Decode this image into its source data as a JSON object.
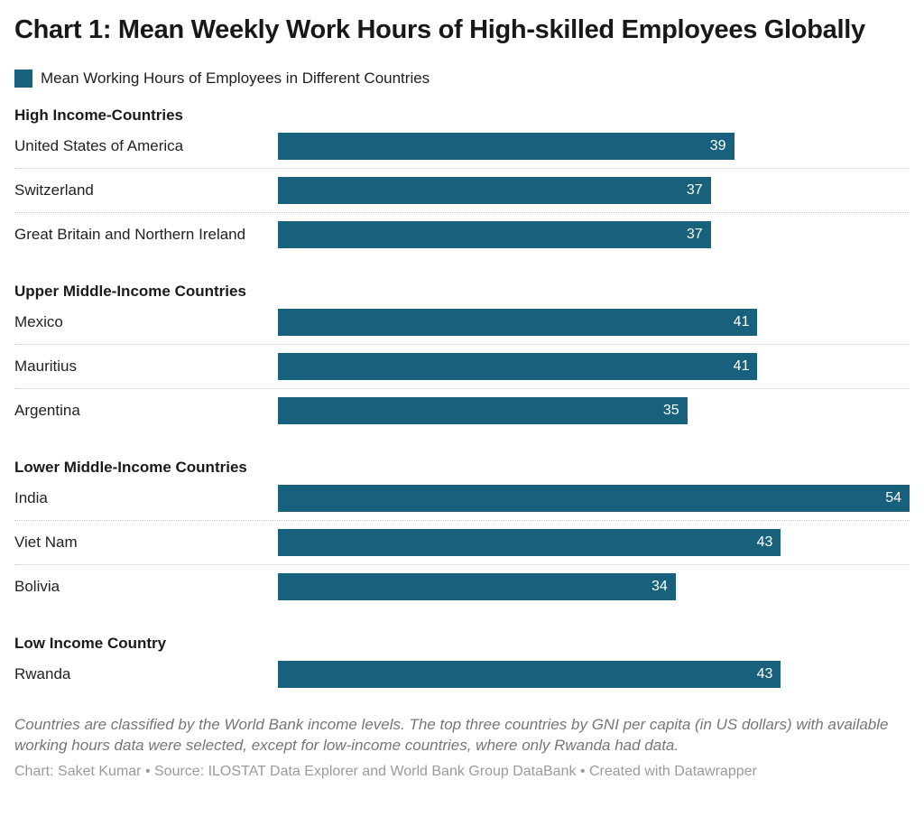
{
  "title": "Chart 1: Mean Weekly Work Hours of High-skilled Employees Globally",
  "legend": {
    "label": "Mean Working Hours of Employees in Different Countries",
    "swatch_color": "#18617c"
  },
  "chart_data": {
    "type": "bar",
    "orientation": "horizontal",
    "title": "Chart 1: Mean Weekly Work Hours of High-skilled Employees Globally",
    "series_name": "Mean Working Hours of Employees in Different Countries",
    "bar_color": "#18617c",
    "value_label_color": "#ffffff",
    "xlim": [
      0,
      54
    ],
    "grid": false,
    "groups": [
      {
        "label": "High Income-Countries",
        "bars": [
          {
            "label": "United States of America",
            "value": 39
          },
          {
            "label": "Switzerland",
            "value": 37
          },
          {
            "label": "Great Britain and Northern Ireland",
            "value": 37
          }
        ]
      },
      {
        "label": "Upper Middle-Income Countries",
        "bars": [
          {
            "label": "Mexico",
            "value": 41
          },
          {
            "label": "Mauritius",
            "value": 41
          },
          {
            "label": "Argentina",
            "value": 35
          }
        ]
      },
      {
        "label": "Lower Middle-Income Countries",
        "bars": [
          {
            "label": "India",
            "value": 54
          },
          {
            "label": "Viet Nam",
            "value": 43
          },
          {
            "label": "Bolivia",
            "value": 34
          }
        ]
      },
      {
        "label": "Low Income Country",
        "bars": [
          {
            "label": "Rwanda",
            "value": 43
          }
        ]
      }
    ]
  },
  "footer": {
    "note": "Countries are classified by the World Bank income levels. The top three countries by GNI per capita (in US dollars) with available working hours data were selected, except for low-income countries, where only Rwanda had data.",
    "byline": "Chart: Saket Kumar • Source: ILOSTAT Data Explorer and World Bank Group DataBank • Created with Datawrapper"
  }
}
